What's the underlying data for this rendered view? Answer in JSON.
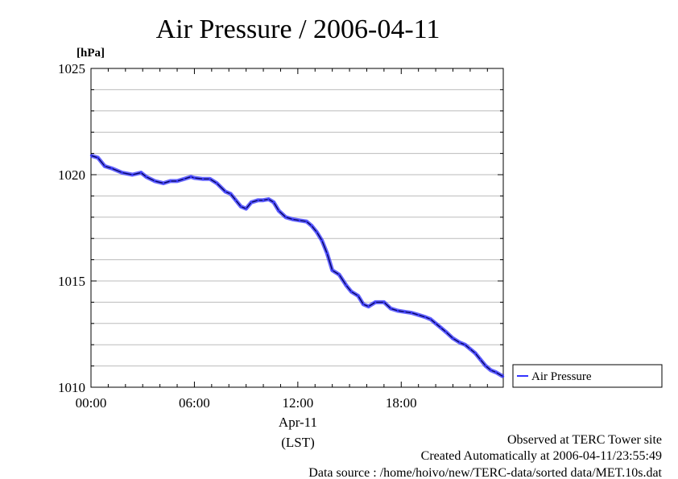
{
  "chart_data": {
    "type": "line",
    "title": "Air Pressure / 2006-04-11",
    "ylabel": "[hPa]",
    "xlabel": "(LST)",
    "x_date_label": "Apr-11",
    "ylim": [
      1010,
      1025
    ],
    "y_ticks": [
      "1010",
      "1015",
      "1020",
      "1025"
    ],
    "x_ticks": [
      "00:00",
      "06:00",
      "12:00",
      "18:00"
    ],
    "xlim_hours": [
      0,
      23.92
    ],
    "x_tick_hours": [
      0,
      6,
      12,
      18
    ],
    "grid": true,
    "legend": "right",
    "series": [
      {
        "name": "Air Pressure",
        "color": "#3333ff",
        "x_hours": [
          0,
          0.4,
          0.8,
          1.2,
          1.8,
          2.4,
          2.9,
          3.2,
          3.7,
          4.2,
          4.6,
          5.0,
          5.4,
          5.8,
          6.0,
          6.5,
          6.9,
          7.3,
          7.8,
          8.1,
          8.4,
          8.7,
          9.0,
          9.3,
          9.7,
          10.0,
          10.3,
          10.6,
          10.9,
          11.3,
          11.7,
          12.1,
          12.5,
          12.8,
          13.1,
          13.4,
          13.7,
          14.0,
          14.4,
          14.8,
          15.1,
          15.5,
          15.8,
          16.1,
          16.5,
          17.0,
          17.4,
          17.8,
          18.2,
          18.6,
          19.0,
          19.4,
          19.7,
          20.0,
          20.3,
          20.6,
          21.0,
          21.4,
          21.7,
          22.0,
          22.3,
          22.6,
          22.9,
          23.2,
          23.5,
          23.92
        ],
        "values": [
          1020.9,
          1020.8,
          1020.4,
          1020.3,
          1020.1,
          1020.0,
          1020.1,
          1019.9,
          1019.7,
          1019.6,
          1019.7,
          1019.7,
          1019.8,
          1019.9,
          1019.85,
          1019.8,
          1019.8,
          1019.6,
          1019.2,
          1019.1,
          1018.8,
          1018.5,
          1018.4,
          1018.7,
          1018.8,
          1018.8,
          1018.85,
          1018.7,
          1018.3,
          1018.0,
          1017.9,
          1017.85,
          1017.8,
          1017.6,
          1017.3,
          1016.9,
          1016.3,
          1015.5,
          1015.3,
          1014.8,
          1014.5,
          1014.3,
          1013.9,
          1013.8,
          1014.0,
          1014.0,
          1013.7,
          1013.6,
          1013.55,
          1013.5,
          1013.4,
          1013.3,
          1013.2,
          1013.0,
          1012.8,
          1012.6,
          1012.3,
          1012.1,
          1012.0,
          1011.8,
          1011.6,
          1011.3,
          1011.0,
          1010.8,
          1010.7,
          1010.5
        ]
      }
    ]
  },
  "footer": {
    "line1": "Observed at TERC Tower site",
    "line2": "Created Automatically at 2006-04-11/23:55:49",
    "line3": "Data source : /home/hoivo/new/TERC-data/sorted  data/MET.10s.dat"
  }
}
